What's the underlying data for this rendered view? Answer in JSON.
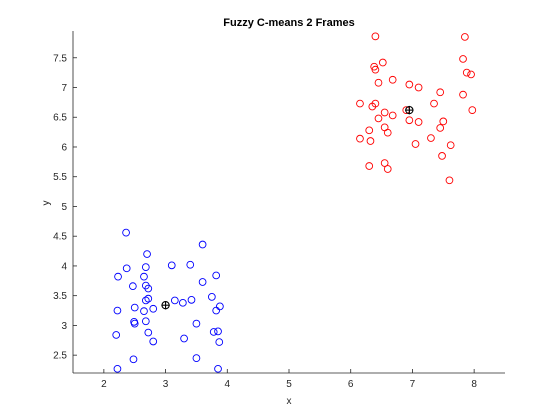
{
  "chart_data": {
    "type": "scatter",
    "title": "Fuzzy C-means 2 Frames",
    "xlabel": "x",
    "ylabel": "y",
    "xlim": [
      1.5,
      8.5
    ],
    "ylim": [
      2.2,
      7.95
    ],
    "xticks": [
      2,
      3,
      4,
      5,
      6,
      7,
      8
    ],
    "yticks": [
      2.5,
      3,
      3.5,
      4,
      4.5,
      5,
      5.5,
      6,
      6.5,
      7,
      7.5
    ],
    "xtick_labels": [
      "2",
      "3",
      "4",
      "5",
      "6",
      "7",
      "8"
    ],
    "ytick_labels": [
      "2.5",
      "3",
      "3.5",
      "4",
      "4.5",
      "5",
      "5.5",
      "6",
      "6.5",
      "7",
      "7.5"
    ],
    "grid": false,
    "marker": "circle-open",
    "series": [
      {
        "color": "#0000ff",
        "points": [
          [
            2.36,
            4.56
          ],
          [
            2.37,
            3.96
          ],
          [
            2.23,
            3.82
          ],
          [
            2.22,
            3.25
          ],
          [
            2.2,
            2.84
          ],
          [
            2.22,
            2.27
          ],
          [
            2.47,
            3.66
          ],
          [
            2.5,
            3.3
          ],
          [
            2.49,
            3.06
          ],
          [
            2.5,
            3.03
          ],
          [
            2.48,
            2.43
          ],
          [
            2.65,
            3.82
          ],
          [
            2.68,
            3.98
          ],
          [
            2.7,
            4.2
          ],
          [
            2.68,
            3.67
          ],
          [
            2.72,
            3.62
          ],
          [
            2.68,
            3.42
          ],
          [
            2.72,
            3.45
          ],
          [
            2.65,
            3.24
          ],
          [
            2.68,
            3.07
          ],
          [
            2.72,
            2.88
          ],
          [
            2.8,
            3.28
          ],
          [
            2.8,
            2.73
          ],
          [
            3.1,
            4.01
          ],
          [
            3.15,
            3.42
          ],
          [
            3.28,
            3.38
          ],
          [
            3.3,
            2.78
          ],
          [
            3.4,
            4.02
          ],
          [
            3.42,
            3.43
          ],
          [
            3.5,
            3.03
          ],
          [
            3.5,
            2.45
          ],
          [
            3.6,
            4.36
          ],
          [
            3.6,
            3.73
          ],
          [
            3.75,
            3.48
          ],
          [
            3.82,
            3.84
          ],
          [
            3.82,
            3.25
          ],
          [
            3.85,
            2.9
          ],
          [
            3.88,
            3.32
          ],
          [
            3.78,
            2.89
          ],
          [
            3.87,
            2.72
          ],
          [
            3.85,
            2.27
          ]
        ],
        "center": [
          3.0,
          3.34
        ]
      },
      {
        "color": "#ff0000",
        "points": [
          [
            6.4,
            7.86
          ],
          [
            6.52,
            7.42
          ],
          [
            6.38,
            7.35
          ],
          [
            6.4,
            7.3
          ],
          [
            6.45,
            7.08
          ],
          [
            6.68,
            7.13
          ],
          [
            6.95,
            7.05
          ],
          [
            7.1,
            7.0
          ],
          [
            7.45,
            6.92
          ],
          [
            7.35,
            6.73
          ],
          [
            6.15,
            6.73
          ],
          [
            6.35,
            6.68
          ],
          [
            6.4,
            6.73
          ],
          [
            6.55,
            6.58
          ],
          [
            6.68,
            6.53
          ],
          [
            6.9,
            6.62
          ],
          [
            6.95,
            6.45
          ],
          [
            7.1,
            6.42
          ],
          [
            6.45,
            6.48
          ],
          [
            6.3,
            6.28
          ],
          [
            6.55,
            6.33
          ],
          [
            6.6,
            6.24
          ],
          [
            6.15,
            6.14
          ],
          [
            6.32,
            6.1
          ],
          [
            7.05,
            6.05
          ],
          [
            7.3,
            6.15
          ],
          [
            7.45,
            6.32
          ],
          [
            7.5,
            6.43
          ],
          [
            7.48,
            5.85
          ],
          [
            7.62,
            6.03
          ],
          [
            6.55,
            5.73
          ],
          [
            6.3,
            5.68
          ],
          [
            6.6,
            5.63
          ],
          [
            7.6,
            5.44
          ],
          [
            7.85,
            7.85
          ],
          [
            7.82,
            7.48
          ],
          [
            7.88,
            7.25
          ],
          [
            7.95,
            7.22
          ],
          [
            7.82,
            6.88
          ],
          [
            7.97,
            6.62
          ]
        ],
        "center": [
          6.95,
          6.62
        ]
      }
    ]
  }
}
